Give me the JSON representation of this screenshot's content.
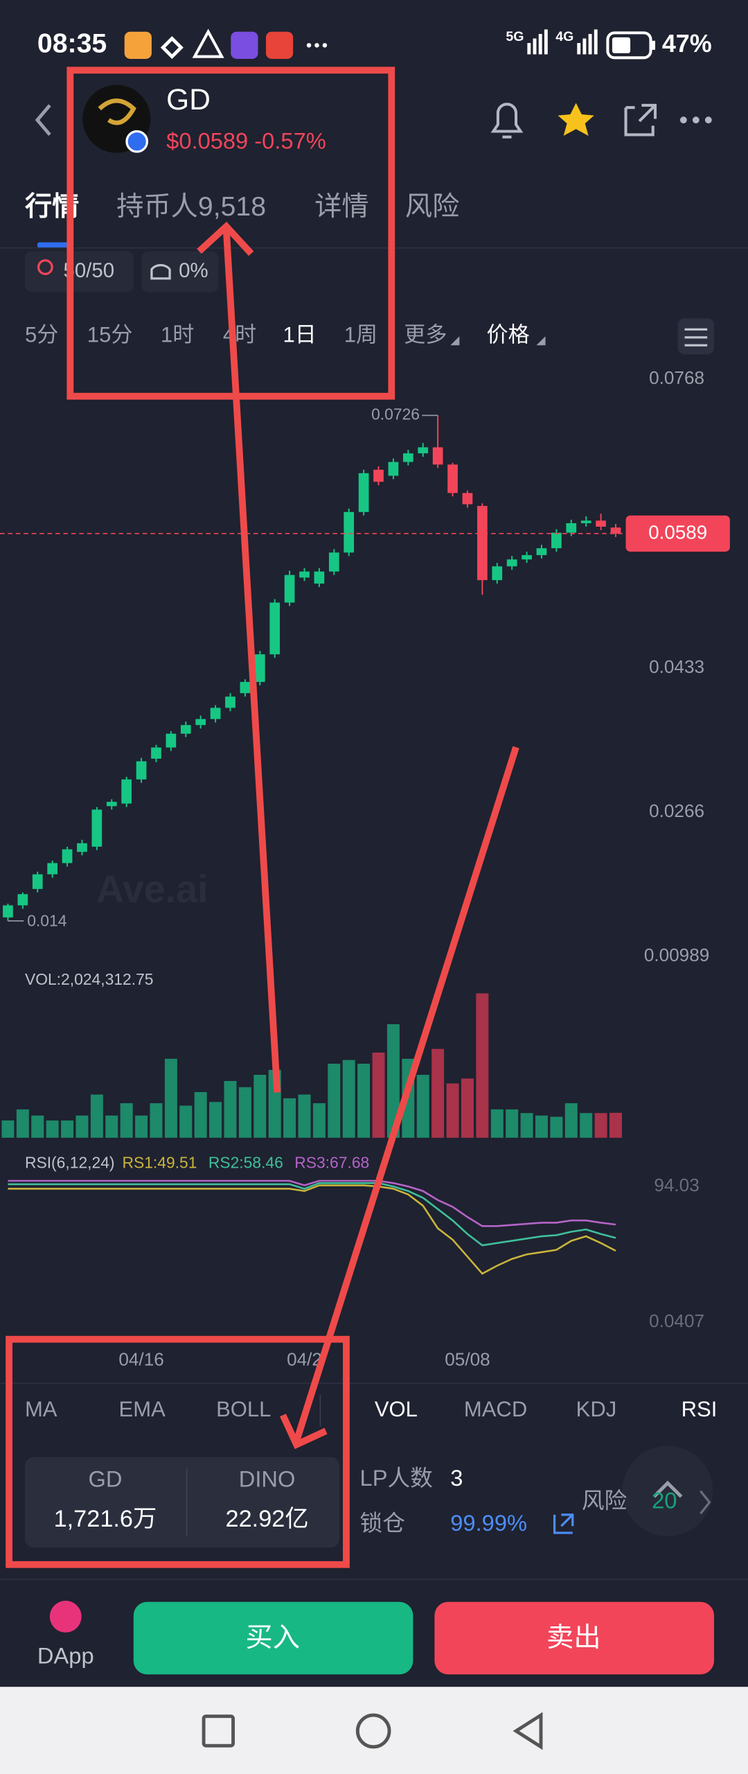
{
  "status_bar": {
    "time": "08:35",
    "net1": "5G",
    "net2": "4G",
    "battery": "47%"
  },
  "header": {
    "symbol": "GD",
    "price": "$0.0589 -0.57%"
  },
  "tabs": [
    "行情",
    "持币人9,518",
    "详情",
    "风险"
  ],
  "badges": [
    "50/50",
    "0%"
  ],
  "timeframes": [
    "5分",
    "15分",
    "1时",
    "4时",
    "1日",
    "1周",
    "更多",
    "价格"
  ],
  "watermark": "Ave.ai",
  "indicators": [
    "MA",
    "EMA",
    "BOLL",
    "VOL",
    "MACD",
    "KDJ",
    "RSI"
  ],
  "pool": {
    "token1": "GD",
    "amount1": "1,721.6万",
    "token2": "DINO",
    "amount2": "22.92亿"
  },
  "stats": {
    "lp_label": "LP人数",
    "lp_value": "3",
    "lock_label": "锁仓",
    "lock_value": "99.99%",
    "risk_label": "风险",
    "risk_value": "20"
  },
  "bottom": {
    "dapp": "DApp",
    "buy": "买入",
    "sell": "卖出"
  },
  "chart_data": [
    {
      "type": "candlestick",
      "up_color": "#16c784",
      "down_color": "#f2455a",
      "ylim": [
        0.0092,
        0.0781
      ],
      "yticks": [
        0.0768,
        0.0433,
        0.0266,
        0.00989
      ],
      "open": [
        0.0144,
        0.0158,
        0.0177,
        0.0194,
        0.0207,
        0.022,
        0.0226,
        0.0273,
        0.0276,
        0.0304,
        0.0328,
        0.0341,
        0.0357,
        0.0367,
        0.0374,
        0.0387,
        0.0404,
        0.0417,
        0.0449,
        0.0509,
        0.0538,
        0.0531,
        0.0545,
        0.0567,
        0.0614,
        0.0663,
        0.0656,
        0.0672,
        0.0682,
        0.0689,
        0.0669,
        0.0636,
        0.0621,
        0.0535,
        0.0551,
        0.0559,
        0.0564,
        0.0572,
        0.059,
        0.0601,
        0.0604,
        0.0596
      ],
      "high": [
        0.016,
        0.0173,
        0.0197,
        0.021,
        0.0226,
        0.0234,
        0.0272,
        0.0281,
        0.0307,
        0.0329,
        0.0344,
        0.036,
        0.0371,
        0.0378,
        0.039,
        0.0404,
        0.042,
        0.0453,
        0.0513,
        0.0546,
        0.0549,
        0.0549,
        0.0571,
        0.0618,
        0.0663,
        0.0667,
        0.0676,
        0.0686,
        0.0694,
        0.0726,
        0.0671,
        0.0639,
        0.0624,
        0.0555,
        0.0563,
        0.0568,
        0.0576,
        0.0594,
        0.0605,
        0.0609,
        0.0612,
        0.06
      ],
      "low": [
        0.014,
        0.0154,
        0.0173,
        0.019,
        0.0203,
        0.0216,
        0.0222,
        0.0269,
        0.0272,
        0.03,
        0.0324,
        0.0337,
        0.0353,
        0.0363,
        0.037,
        0.0383,
        0.04,
        0.0413,
        0.0445,
        0.0505,
        0.0534,
        0.0527,
        0.0541,
        0.0563,
        0.061,
        0.0645,
        0.0652,
        0.0668,
        0.0678,
        0.0665,
        0.0632,
        0.0619,
        0.0518,
        0.0531,
        0.0547,
        0.0555,
        0.056,
        0.0568,
        0.0586,
        0.0597,
        0.0593,
        0.0585
      ],
      "close": [
        0.0158,
        0.0171,
        0.0194,
        0.0207,
        0.0223,
        0.023,
        0.0269,
        0.0278,
        0.0304,
        0.0325,
        0.0341,
        0.0357,
        0.0367,
        0.0374,
        0.0387,
        0.04,
        0.0417,
        0.0449,
        0.0509,
        0.0541,
        0.0545,
        0.0545,
        0.0567,
        0.0614,
        0.0659,
        0.0649,
        0.0672,
        0.0682,
        0.0689,
        0.0669,
        0.0636,
        0.0623,
        0.0535,
        0.0551,
        0.0559,
        0.0564,
        0.0572,
        0.059,
        0.0601,
        0.0604,
        0.0597,
        0.0589
      ]
    },
    {
      "type": "bar",
      "title": "VOL:2,024,312.75",
      "up_color": "#1d8a6a",
      "down_color": "#a8334a",
      "ylim": [
        0,
        13300000
      ],
      "values": [
        1400000,
        2300000,
        1800000,
        1400000,
        1400000,
        1800000,
        3500000,
        1800000,
        2800000,
        1800000,
        2800000,
        6400000,
        2600000,
        3700000,
        2900000,
        4600000,
        4100000,
        5100000,
        5500000,
        3200000,
        3500000,
        2800000,
        6000000,
        6300000,
        6000000,
        6900000,
        9200000,
        6400000,
        5100000,
        7200000,
        4400000,
        4800000,
        11700000,
        2300000,
        2300000,
        2000000,
        1800000,
        1700000,
        2800000,
        2000000,
        2000000,
        2024312.75
      ]
    },
    {
      "type": "line",
      "title": "RSI(6,12,24)",
      "ylim": [
        -7.8,
        116
      ],
      "yticks": [
        94.03,
        0.0407
      ],
      "categories": [
        null,
        null,
        null,
        null,
        null,
        null,
        null,
        null,
        null,
        "04/16",
        null,
        null,
        null,
        null,
        null,
        null,
        null,
        null,
        null,
        null,
        "04/2",
        null,
        null,
        null,
        null,
        null,
        null,
        null,
        null,
        null,
        null,
        "05/08",
        null,
        null,
        null,
        null,
        null,
        null,
        null,
        null,
        null,
        null
      ],
      "series": [
        {
          "name": "RS1:49.51",
          "color": "#c9b43c",
          "values": [
            92.46,
            92.46,
            92.46,
            92.46,
            92.46,
            92.46,
            92.46,
            92.46,
            92.46,
            92.46,
            92.46,
            92.46,
            92.46,
            92.46,
            92.46,
            92.46,
            92.46,
            92.46,
            92.46,
            92.46,
            90.9,
            94.81,
            94.81,
            94.81,
            94.81,
            94.03,
            92.46,
            88.55,
            80.71,
            65.05,
            57.22,
            45.47,
            33.72,
            39.2,
            43.9,
            47.03,
            48.6,
            50.16,
            56.43,
            59.56,
            54.87,
            49.51
          ]
        },
        {
          "name": "RS2:58.46",
          "color": "#3fbf9a",
          "values": [
            95.6,
            95.6,
            95.6,
            95.6,
            95.6,
            95.6,
            95.6,
            95.6,
            95.6,
            95.6,
            95.6,
            95.6,
            95.6,
            95.6,
            95.6,
            95.6,
            95.6,
            95.6,
            95.6,
            95.6,
            92.46,
            96.38,
            96.38,
            96.38,
            96.38,
            96.38,
            94.03,
            90.9,
            86.2,
            78.36,
            70.53,
            61.13,
            53.3,
            54.87,
            56.43,
            58.0,
            59.56,
            60.35,
            62.7,
            64.27,
            61.13,
            58.46
          ]
        },
        {
          "name": "RS3:67.68",
          "color": "#b464c8",
          "values": [
            97.95,
            97.95,
            97.95,
            97.95,
            97.95,
            97.95,
            97.95,
            97.95,
            97.95,
            97.95,
            97.95,
            97.95,
            97.95,
            97.95,
            97.95,
            97.95,
            97.95,
            97.95,
            97.95,
            97.95,
            94.81,
            97.95,
            97.95,
            97.95,
            97.95,
            97.95,
            96.38,
            94.03,
            90.9,
            84.63,
            79.93,
            72.88,
            66.62,
            66.62,
            67.4,
            68.18,
            68.96,
            68.96,
            70.53,
            70.53,
            68.96,
            67.68
          ]
        }
      ]
    }
  ]
}
